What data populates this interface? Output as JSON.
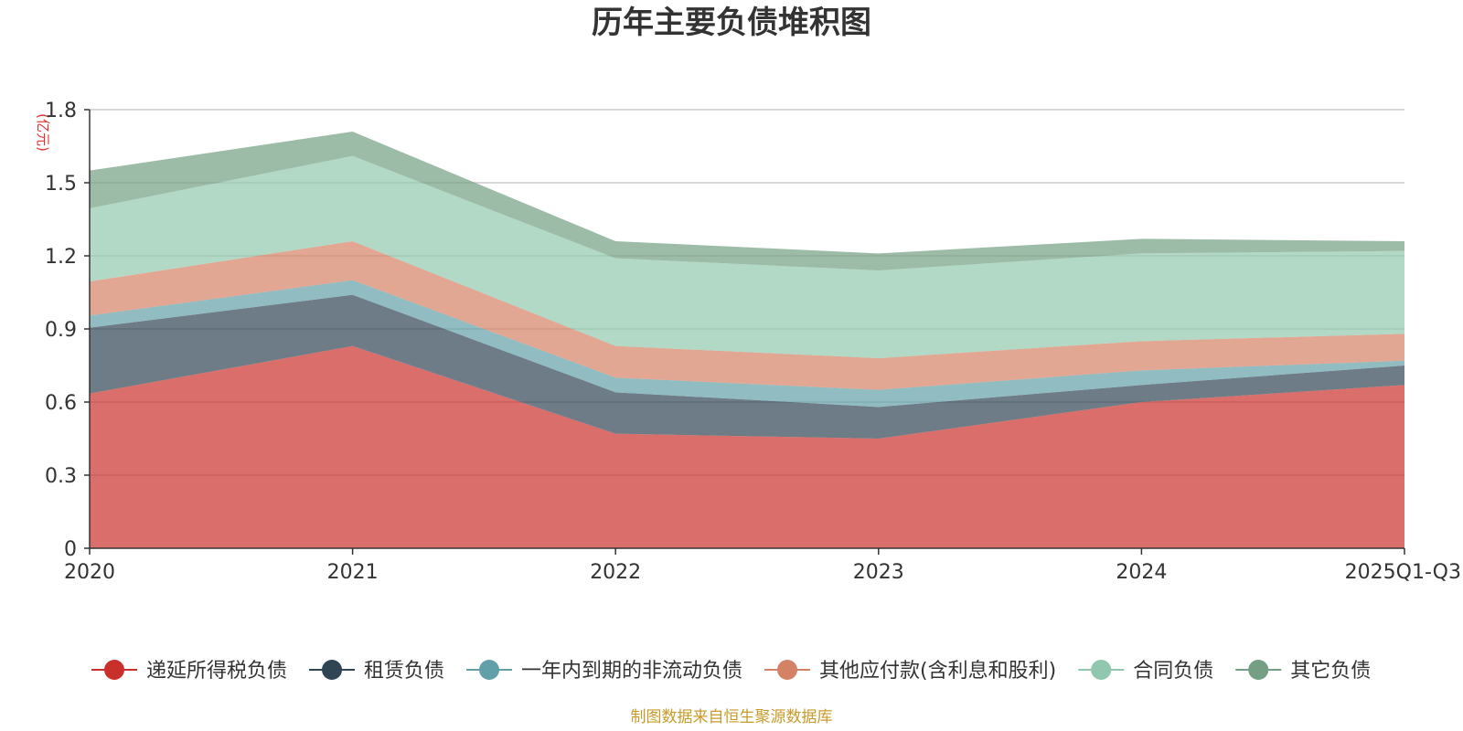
{
  "chart_data": {
    "type": "area",
    "stacked": true,
    "title": "历年主要负债堆积图",
    "unit_label": "(亿元)",
    "categories": [
      "2020",
      "2021",
      "2022",
      "2023",
      "2024",
      "2025Q1-Q3"
    ],
    "ylim": [
      0,
      1.8
    ],
    "yticks": [
      0,
      0.3,
      0.6,
      0.9,
      1.2,
      1.5,
      1.8
    ],
    "ytick_labels": [
      "0",
      "0.3",
      "0.6",
      "0.9",
      "1.2",
      "1.5",
      "1.8"
    ],
    "grid": true,
    "legend_position": "bottom",
    "series": [
      {
        "name": "递延所得税负债",
        "color": "#c9302c",
        "values": [
          0.635,
          0.83,
          0.47,
          0.45,
          0.6,
          0.67
        ]
      },
      {
        "name": "租赁负债",
        "color": "#2f4554",
        "values": [
          0.27,
          0.21,
          0.17,
          0.13,
          0.07,
          0.08
        ]
      },
      {
        "name": "一年内到期的非流动负债",
        "color": "#61a0a8",
        "values": [
          0.05,
          0.06,
          0.06,
          0.07,
          0.06,
          0.02
        ]
      },
      {
        "name": "其他应付款(含利息和股利)",
        "color": "#d48265",
        "values": [
          0.14,
          0.16,
          0.13,
          0.13,
          0.12,
          0.11
        ]
      },
      {
        "name": "合同负债",
        "color": "#91c7ae",
        "values": [
          0.3,
          0.35,
          0.36,
          0.36,
          0.36,
          0.34
        ]
      },
      {
        "name": "其它负债",
        "color": "#749f83",
        "values": [
          0.155,
          0.1,
          0.07,
          0.07,
          0.06,
          0.04
        ]
      }
    ]
  },
  "footer": {
    "source": "制图数据来自恒生聚源数据库"
  }
}
